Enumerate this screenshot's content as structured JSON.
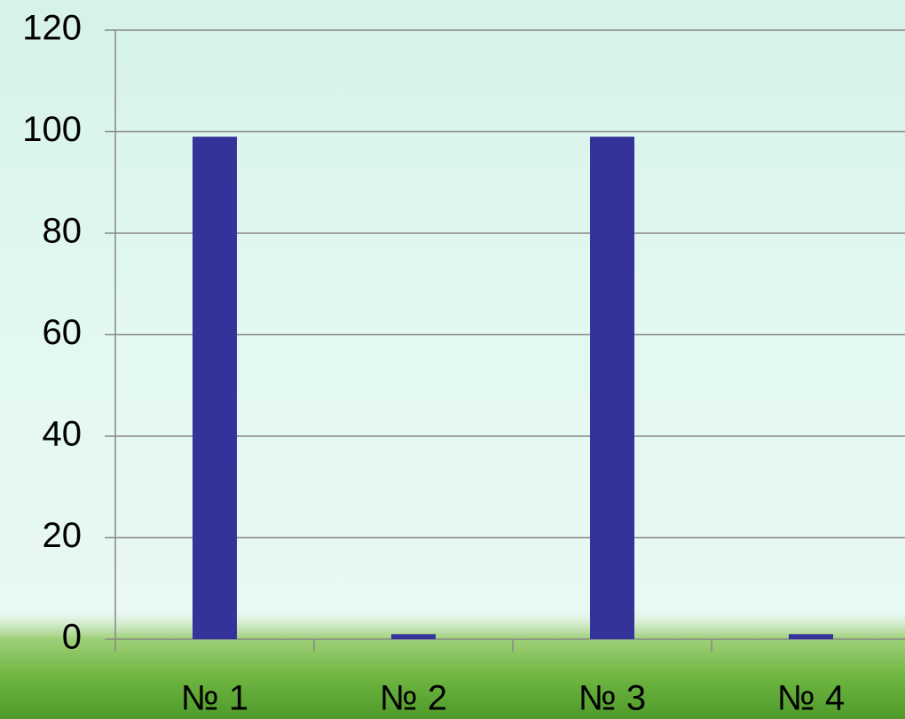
{
  "chart_data": {
    "type": "bar",
    "categories": [
      "№ 1",
      "№ 2",
      "№ 3",
      "№ 4"
    ],
    "values": [
      99,
      1,
      99,
      1
    ],
    "color": "#333399",
    "ylim": [
      0,
      120
    ],
    "yticks": [
      0,
      20,
      40,
      60,
      80,
      100,
      120
    ],
    "grid": true
  }
}
